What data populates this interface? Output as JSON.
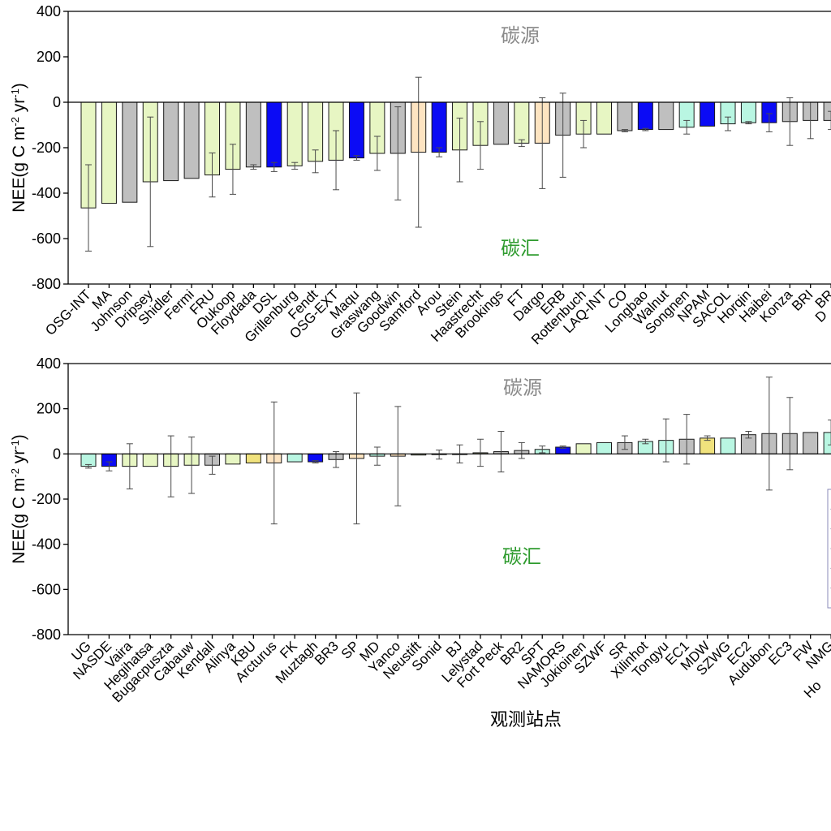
{
  "palette": {
    "green": "#e7f6c3",
    "gray": "#bfbfbf",
    "blue": "#0b0bf5",
    "mint": "#b9f6e2",
    "orange": "#fde4c1",
    "yellow": "#f0e27d"
  },
  "chart_data": [
    {
      "type": "bar",
      "categories": [
        "OSG-INT",
        "MA",
        "Johnson",
        "Dripsey",
        "Shidler",
        "Fermi",
        "FRU",
        "Oukoop",
        "Floydada",
        "DSL",
        "Grillenburg",
        "Fendt",
        "OSG-EXT",
        "Maqu",
        "Graswang",
        "Goodwin",
        "Samford",
        "Arou",
        "Stein",
        "Haastrecht",
        "Brookings",
        "FT",
        "Dargo",
        "ERB",
        "Rottenbuch",
        "LAQ-INT",
        "CO",
        "Longbao",
        "Walnut",
        "Songnen",
        "NPAM",
        "SACOL",
        "Horqin",
        "Haibei",
        "Konza",
        "BRI",
        "BR",
        "D"
      ],
      "values": [
        -465,
        -445,
        -440,
        -350,
        -345,
        -335,
        -320,
        -295,
        -285,
        -285,
        -280,
        -260,
        -255,
        -245,
        -225,
        -225,
        -220,
        -220,
        -210,
        -190,
        -185,
        -180,
        -180,
        -145,
        -140,
        -140,
        -125,
        -120,
        -120,
        -110,
        -105,
        -95,
        -90,
        -90,
        -85,
        -80,
        -80,
        null
      ],
      "errors": [
        190,
        0,
        0,
        285,
        0,
        0,
        97,
        110,
        10,
        20,
        15,
        50,
        130,
        10,
        75,
        205,
        330,
        20,
        140,
        105,
        0,
        15,
        200,
        185,
        60,
        0,
        5,
        5,
        0,
        30,
        0,
        30,
        5,
        40,
        105,
        80,
        40,
        null
      ],
      "colors": [
        "green",
        "green",
        "gray",
        "green",
        "gray",
        "gray",
        "green",
        "green",
        "gray",
        "blue",
        "green",
        "green",
        "green",
        "blue",
        "green",
        "gray",
        "orange",
        "blue",
        "green",
        "green",
        "gray",
        "green",
        "orange",
        "gray",
        "green",
        "green",
        "gray",
        "blue",
        "gray",
        "mint",
        "blue",
        "mint",
        "mint",
        "blue",
        "gray",
        "gray",
        "gray",
        null
      ],
      "ylim": [
        -800,
        400
      ],
      "yticks": [
        400,
        200,
        0,
        -200,
        -400,
        -600,
        -800
      ],
      "ylabel": [
        {
          "text": "NEE(g C m"
        },
        {
          "text": "-2",
          "sup": true
        },
        {
          "text": " yr"
        },
        {
          "text": "-1",
          "sup": true
        },
        {
          "text": ")"
        }
      ],
      "xlabel": "",
      "annotations": [
        {
          "text": "碳源",
          "color": "#8a8a8a"
        },
        {
          "text": "碳汇",
          "color": "#2e9b2e"
        }
      ],
      "grid": false
    },
    {
      "type": "bar",
      "categories": [
        "UG",
        "NASDE",
        "Vaira",
        "Hegihatsa",
        "Bugacpuszta",
        "Cabauw",
        "Kendall",
        "Alinya",
        "KBU",
        "Arcturus",
        "FK",
        "Muztagh",
        "BR3",
        "SP",
        "MD",
        "Yanco",
        "Neustift",
        "Sonid",
        "BJ",
        "Lelystad",
        "Fort Peck",
        "BR2",
        "SPT",
        "NAMORS",
        "Jokioinen",
        "SZWF",
        "SR",
        "Xilinhot",
        "Tongyu",
        "EC1",
        "MDW",
        "SZWG",
        "EC2",
        "Audubon",
        "EC3",
        "FW",
        "NMG",
        "Ho"
      ],
      "values": [
        -55,
        -55,
        -55,
        -55,
        -55,
        -50,
        -50,
        -45,
        -40,
        -40,
        -35,
        -35,
        -25,
        -20,
        -10,
        -10,
        -5,
        -3,
        0,
        5,
        10,
        15,
        20,
        30,
        45,
        50,
        50,
        55,
        60,
        65,
        70,
        70,
        85,
        90,
        90,
        95,
        95,
        null
      ],
      "errors": [
        8,
        20,
        100,
        0,
        135,
        125,
        40,
        0,
        0,
        270,
        0,
        5,
        35,
        290,
        40,
        220,
        0,
        20,
        40,
        60,
        90,
        35,
        15,
        5,
        0,
        0,
        30,
        10,
        95,
        110,
        10,
        0,
        15,
        250,
        160,
        0,
        55,
        null
      ],
      "colors": [
        "mint",
        "blue",
        "green",
        "green",
        "green",
        "green",
        "gray",
        "green",
        "yellow",
        "orange",
        "mint",
        "blue",
        "gray",
        "orange",
        "mint",
        "orange",
        "green",
        "green",
        "gray",
        "green",
        "gray",
        "gray",
        "mint",
        "blue",
        "green",
        "mint",
        "gray",
        "mint",
        "mint",
        "gray",
        "yellow",
        "mint",
        "gray",
        "gray",
        "gray",
        "gray",
        "mint",
        null
      ],
      "ylim": [
        -800,
        400
      ],
      "yticks": [
        400,
        200,
        0,
        -200,
        -400,
        -600,
        -800
      ],
      "ylabel": [
        {
          "text": "NEE(g C m"
        },
        {
          "text": "-2",
          "sup": true
        },
        {
          "text": " yr"
        },
        {
          "text": "-1",
          "sup": true
        },
        {
          "text": ")"
        }
      ],
      "xlabel": "观测站点",
      "annotations": [
        {
          "text": "碳源",
          "color": "#8a8a8a"
        },
        {
          "text": "碳汇",
          "color": "#2e9b2e"
        }
      ],
      "legend_position": "right",
      "grid": false
    }
  ]
}
